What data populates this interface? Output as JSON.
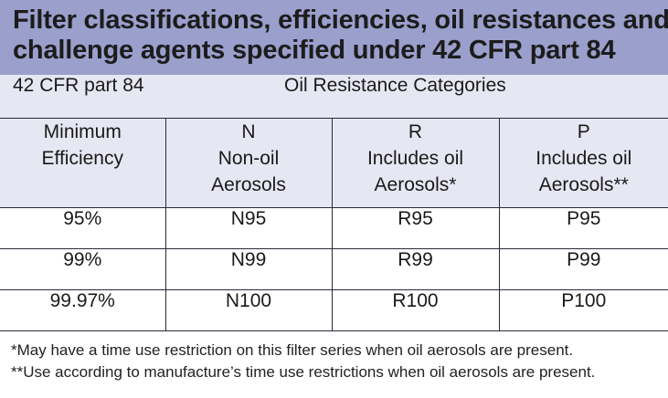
{
  "title": {
    "line1": "Filter classifications, efficiencies, oil resistances and",
    "line2": "challenge agents specified under 42 CFR part 84"
  },
  "table": {
    "cfr_label": "42 CFR part 84",
    "category_label": "Oil Resistance Categories",
    "headers": [
      {
        "lines": [
          "Minimum",
          "Efficiency"
        ]
      },
      {
        "lines": [
          "N",
          "Non-oil",
          "Aerosols"
        ]
      },
      {
        "lines": [
          "R",
          "Includes oil",
          "Aerosols*"
        ]
      },
      {
        "lines": [
          "P",
          "Includes oil",
          "Aerosols**"
        ]
      }
    ],
    "rows": [
      [
        "95%",
        "N95",
        "R95",
        "P95"
      ],
      [
        "99%",
        "N99",
        "R99",
        "P99"
      ],
      [
        "99.97%",
        "N100",
        "R100",
        "P100"
      ]
    ]
  },
  "notes": [
    "*May have a time use restriction on this filter series when oil aerosols are present.",
    "**Use according to manufacture’s time use restrictions when oil aerosols are present."
  ],
  "colors": {
    "title_background": "#9a9fcc",
    "header_background": "#e6e7f3",
    "grid_lines": "#2a2a3a"
  }
}
